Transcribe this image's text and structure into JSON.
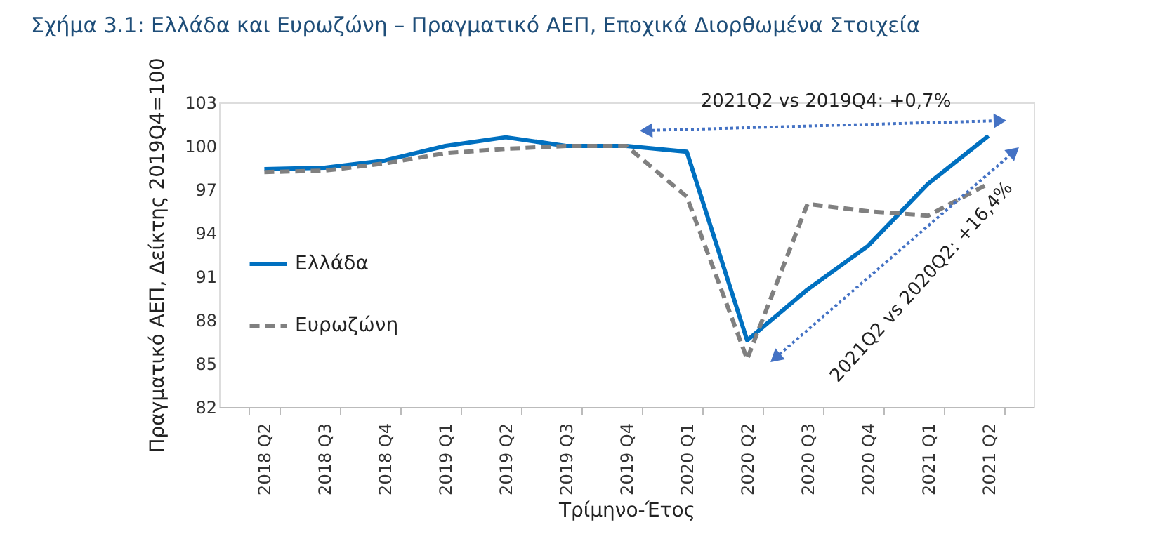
{
  "chart_data": {
    "type": "line",
    "title": "Σχήμα 3.1: Ελλάδα και Ευρωζώνη – Πραγματικό ΑΕΠ, Εποχικά Διορθωμένα Στοιχεία",
    "xlabel": "Τρίμηνο-Έτος",
    "ylabel": "Πραγματικό ΑΕΠ, Δείκτης 2019Q4=100",
    "categories": [
      "2018 Q2",
      "2018 Q3",
      "2018 Q4",
      "2019 Q1",
      "2019 Q2",
      "2019 Q3",
      "2019 Q4",
      "2020 Q1",
      "2020 Q2",
      "2020 Q3",
      "2020 Q4",
      "2021 Q1",
      "2021 Q2"
    ],
    "series": [
      {
        "name": "Ελλάδα",
        "color": "#0070c0",
        "line_style": "solid",
        "values": [
          98.4,
          98.5,
          99.0,
          100.0,
          100.6,
          100.0,
          100.0,
          99.6,
          86.6,
          90.1,
          93.1,
          97.4,
          100.7
        ]
      },
      {
        "name": "Ευρωζώνη",
        "color": "#808080",
        "line_style": "dashed",
        "values": [
          98.2,
          98.3,
          98.8,
          99.5,
          99.8,
          100.0,
          100.0,
          96.5,
          85.3,
          96.0,
          95.5,
          95.2,
          97.4
        ]
      }
    ],
    "annotations": [
      "2021Q2 vs 2019Q4: +0,7%",
      "2021Q2 vs 2020Q2: +16,4%"
    ],
    "ylim": [
      82,
      103
    ],
    "yticks": [
      82,
      85,
      88,
      91,
      94,
      97,
      100,
      103
    ],
    "grid": false,
    "legend": "left",
    "marker": "none"
  }
}
